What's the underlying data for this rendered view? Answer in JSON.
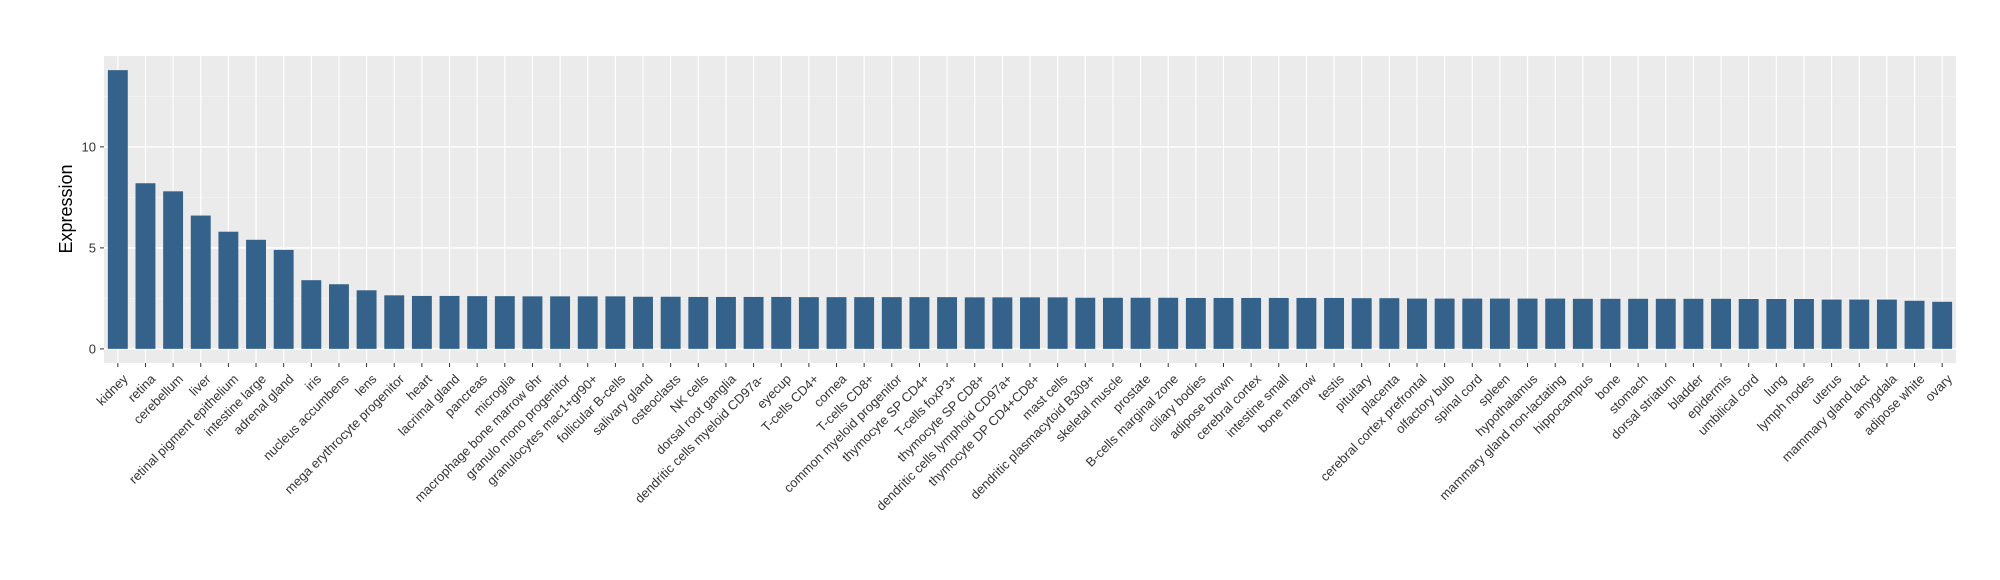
{
  "chart_data": {
    "type": "bar",
    "ylabel": "Expression",
    "xlabel": "",
    "ylim": [
      -0.7,
      14.5
    ],
    "yticks": [
      0,
      5,
      10
    ],
    "grid": true,
    "bar_color": "#34628a",
    "panel_color": "#ebebeb",
    "categories": [
      "kidney",
      "retina",
      "cerebellum",
      "liver",
      "retinal pigment epithelium",
      "intestine large",
      "adrenal gland",
      "iris",
      "nucleus accumbens",
      "lens",
      "mega erythrocyte progenitor",
      "heart",
      "lacrimal gland",
      "pancreas",
      "microglia",
      "macrophage bone marrow 6hr",
      "granulo mono progenitor",
      "granulocytes mac1+gr90+",
      "follicular B-cells",
      "salivary gland",
      "osteoclasts",
      "NK cells",
      "dorsal root ganglia",
      "dendritic cells myeloid CD97a-",
      "eyecup",
      "T-cells CD4+",
      "cornea",
      "T-cells CD8+",
      "common myeloid progenitor",
      "thymocyte SP CD4+",
      "T-cells foxP3+",
      "thymocyte SP CD8+",
      "dendritic cells lymphoid CD97a+",
      "thymocyte DP CD4+CD8+",
      "mast cells",
      "dendritic plasmacytoid B309+",
      "skeletal muscle",
      "prostate",
      "B-cells marginal zone",
      "ciliary bodies",
      "adipose brown",
      "cerebral cortex",
      "intestine small",
      "bone marrow",
      "testis",
      "pituitary",
      "placenta",
      "cerebral cortex prefrontal",
      "olfactory bulb",
      "spinal cord",
      "spleen",
      "hypothalamus",
      "mammary gland non-lactating",
      "hippocampus",
      "bone",
      "stomach",
      "dorsal striatum",
      "bladder",
      "epidermis",
      "umbilical cord",
      "lung",
      "lymph nodes",
      "uterus",
      "mammary gland  lact",
      "amygdala",
      "adipose white",
      "ovary"
    ],
    "values": [
      13.8,
      8.2,
      7.8,
      6.6,
      5.8,
      5.4,
      4.9,
      3.4,
      3.2,
      2.9,
      2.65,
      2.62,
      2.62,
      2.61,
      2.61,
      2.6,
      2.6,
      2.6,
      2.6,
      2.58,
      2.58,
      2.57,
      2.57,
      2.57,
      2.57,
      2.56,
      2.56,
      2.56,
      2.56,
      2.56,
      2.56,
      2.55,
      2.55,
      2.55,
      2.55,
      2.53,
      2.53,
      2.53,
      2.53,
      2.52,
      2.52,
      2.52,
      2.52,
      2.52,
      2.52,
      2.51,
      2.51,
      2.49,
      2.49,
      2.49,
      2.49,
      2.49,
      2.49,
      2.48,
      2.48,
      2.48,
      2.48,
      2.48,
      2.48,
      2.47,
      2.47,
      2.47,
      2.44,
      2.44,
      2.44,
      2.38,
      2.33
    ]
  }
}
